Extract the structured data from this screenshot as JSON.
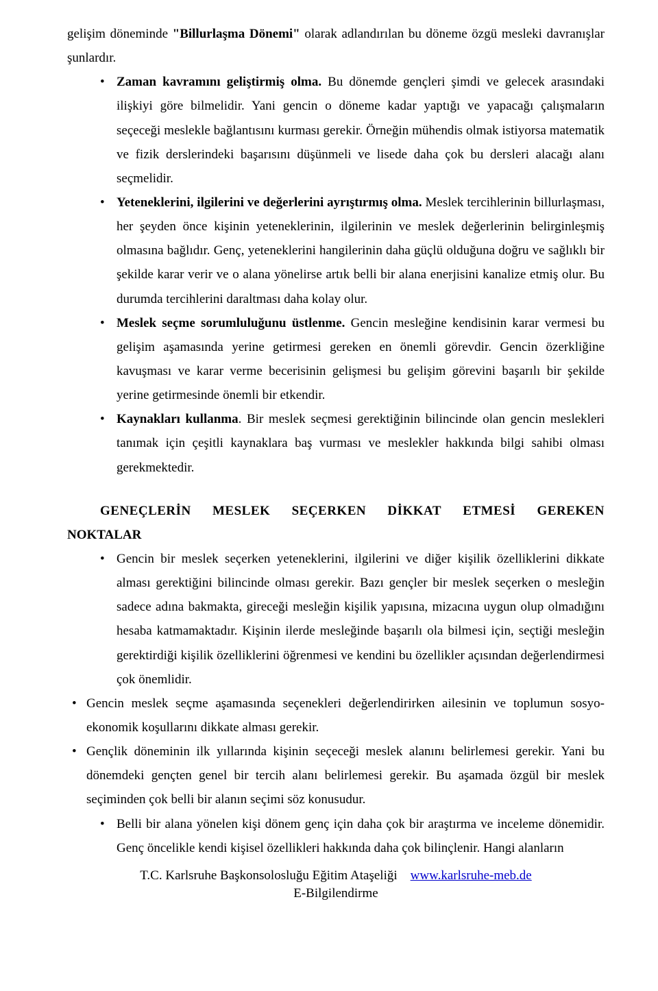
{
  "intro": {
    "p1a": "gelişim döneminde ",
    "p1b": "\"Billurlaşma Dönemi\"",
    "p1c": " olarak adlandırılan bu döneme özgü mesleki davranışlar şunlardır."
  },
  "bullets": {
    "b1_bold": "Zaman kavramını geliştirmiş olma.",
    "b1_text": " Bu dönemde gençleri şimdi ve gelecek arasındaki ilişkiyi göre bilmelidir. Yani gencin o döneme kadar yaptığı ve yapacağı çalışmaların seçeceği meslekle bağlantısını kurması gerekir. Örneğin mühendis olmak istiyorsa matematik ve fizik derslerindeki başarısını düşünmeli ve lisede daha çok bu dersleri alacağı alanı seçmelidir.",
    "b2_bold": "Yeteneklerini, ilgilerini ve değerlerini ayrıştırmış olma.",
    "b2_text": " Meslek tercihlerinin billurlaşması, her şeyden önce kişinin yeteneklerinin, ilgilerinin ve meslek değerlerinin belirginleşmiş olmasına bağlıdır. Genç, yeteneklerini hangilerinin daha güçlü olduğuna doğru ve sağlıklı bir şekilde karar verir ve o alana yönelirse artık belli bir alana enerjisini kanalize etmiş olur. Bu durumda tercihlerini daraltması daha kolay olur.",
    "b3_bold": "Meslek seçme sorumluluğunu üstlenme.",
    "b3_text": " Gencin mesleğine kendisinin karar vermesi bu gelişim aşamasında yerine getirmesi gereken en önemli görevdir. Gencin özerkliğine kavuşması ve karar verme becerisinin gelişmesi bu gelişim görevini başarılı bir şekilde yerine getirmesinde önemli bir etkendir.",
    "b4_bold": "Kaynakları kullanma",
    "b4_text": ". Bir meslek seçmesi gerektiğinin bilincinde olan gencin meslekleri tanımak için çeşitli kaynaklara baş vurması ve meslekler hakkında bilgi sahibi olması gerekmektedir."
  },
  "heading": {
    "w1": "GENEÇLERİN",
    "w2": "MESLEK",
    "w3": "SEÇERKEN",
    "w4": "DİKKAT",
    "w5": "ETMESİ",
    "w6": "GEREKEN",
    "line2": "NOKTALAR"
  },
  "section2": {
    "p1": "Gencin bir meslek seçerken yeteneklerini, ilgilerini ve diğer kişilik özelliklerini dikkate alması gerektiğini bilincinde olması gerekir. Bazı gençler bir meslek seçerken o mesleğin sadece adına bakmakta, gireceği mesleğin kişilik yapısına, mizacına uygun olup olmadığını hesaba katmamaktadır. Kişinin ilerde mesleğinde başarılı ola bilmesi için, seçtiği mesleğin gerektirdiği kişilik özelliklerini öğrenmesi ve kendini bu özellikler açısından değerlendirmesi çok önemlidir.",
    "p2": "Gencin meslek seçme aşamasında seçenekleri değerlendirirken ailesinin ve toplumun sosyo- ekonomik koşullarını dikkate alması gerekir.",
    "p3": "Gençlik döneminin ilk yıllarında kişinin seçeceği meslek alanını belirlemesi gerekir. Yani bu dönemdeki gençten genel bir tercih alanı belirlemesi gerekir. Bu aşamada özgül bir meslek seçiminden çok belli bir alanın seçimi söz konusudur.",
    "p4": "Belli bir alana yönelen kişi dönem genç için daha çok bir araştırma ve inceleme dönemidir. Genç öncelikle kendi kişisel özellikleri hakkında daha çok bilinçlenir. Hangi alanların"
  },
  "footer": {
    "prefix": "T.C. Karlsruhe Başkonsolosluğu Eğitim Ataşeliği",
    "url": "www.karlsruhe-meb.de",
    "line2": "E-Bilgilendirme"
  }
}
